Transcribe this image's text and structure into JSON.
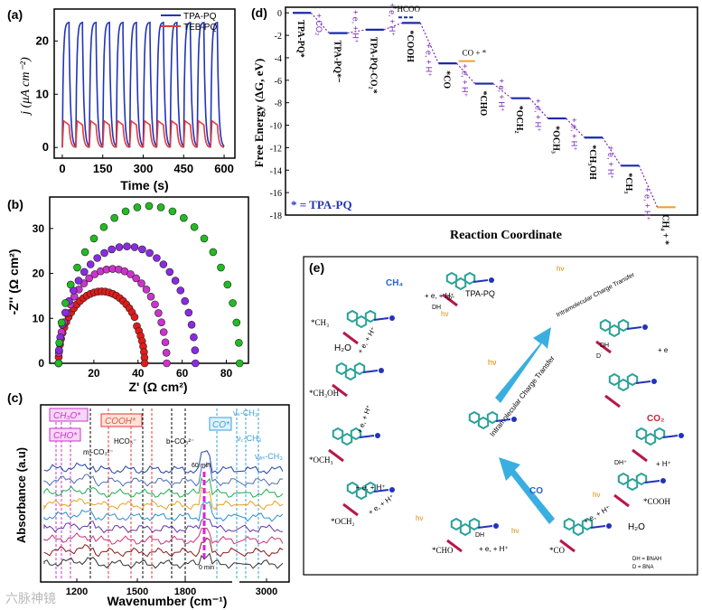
{
  "labels": {
    "a": "(a)",
    "b": "(b)",
    "c": "(c)",
    "d": "(d)",
    "e": "(e)"
  },
  "watermark": "六脉神镜",
  "chart_data": [
    {
      "id": "a",
      "type": "line",
      "xlabel": "Time (s)",
      "ylabel": "j (μA cm⁻²)",
      "xlim": [
        -30,
        640
      ],
      "ylim": [
        -2,
        26
      ],
      "xticks": [
        0,
        150,
        300,
        450,
        600
      ],
      "yticks": [
        0,
        10,
        20
      ],
      "legend_placement": "top-right",
      "cycles": 12,
      "period_s": 50,
      "series": [
        {
          "name": "TPA-PQ",
          "color": "#2233bb",
          "on_value": 23.5,
          "off_value": 0
        },
        {
          "name": "TEB-PQ",
          "color": "#e23b3b",
          "on_value": 5.0,
          "off_value": 0
        }
      ]
    },
    {
      "id": "b",
      "type": "scatter",
      "xlabel": "Z' (Ω cm²)",
      "ylabel": "-Z'' (Ω cm²)",
      "xlim": [
        0,
        90
      ],
      "ylim": [
        0,
        37
      ],
      "xticks": [
        20,
        40,
        60,
        80
      ],
      "yticks": [
        0,
        10,
        20,
        30
      ],
      "series": [
        {
          "color": "#e11b1b",
          "x_start": 4,
          "x_end": 43,
          "peak": 16
        },
        {
          "color": "#cc33cc",
          "x_start": 4,
          "x_end": 53,
          "peak": 21
        },
        {
          "color": "#8a2be2",
          "x_start": 4,
          "x_end": 66,
          "peak": 26
        },
        {
          "color": "#22bb22",
          "x_start": 4,
          "x_end": 86,
          "peak": 35
        }
      ]
    },
    {
      "id": "c",
      "type": "line",
      "xlabel": "Wavenumber (cm⁻¹)",
      "ylabel": "Absorbance (a.u)",
      "xticks": [
        1200,
        1500,
        1800,
        3000
      ],
      "ylim": null,
      "series_count": 9,
      "annotations": {
        "ch3o": "CH₃O*",
        "cho": "CHO*",
        "cooh": "COOH*",
        "co": "CO*",
        "v_ch3": "νₛ-CH₃",
        "v_ch3b": "ν꜀-CH₃",
        "vas_ch3": "νₐₛ-CH₃",
        "m_co3": "m−CO₃²⁻",
        "hco3": "HCO₃⁻",
        "b_co3": "b−CO₃²⁻",
        "t60": "60 min",
        "t0": "0 min"
      }
    },
    {
      "id": "d",
      "type": "line",
      "xlabel": "Reaction Coordinate",
      "ylabel": "Free Energy (ΔG, eV)",
      "ylim": [
        -18,
        0.5
      ],
      "yticks": [
        0,
        -2,
        -4,
        -6,
        -8,
        -10,
        -12,
        -14,
        -16,
        -18
      ],
      "legend": "* = TPA-PQ",
      "levels": [
        {
          "label": "TPA-PQ*",
          "y": 0.0
        },
        {
          "label": "TPA-PQ*⁻",
          "y": -1.8
        },
        {
          "label": "TPA-PQ-CO₂*",
          "y": -1.5
        },
        {
          "label": "*COOH",
          "y": -0.9
        },
        {
          "label": "*CO",
          "y": -4.5
        },
        {
          "label": "*CHO",
          "y": -6.3
        },
        {
          "label": "*OCH₂",
          "y": -7.6
        },
        {
          "label": "*OCH₃",
          "y": -9.4
        },
        {
          "label": "*CH₃OH",
          "y": -11.1
        },
        {
          "label": "*CH₃",
          "y": -13.6
        },
        {
          "label": "CH₄ + *",
          "y": -17.3
        }
      ],
      "side_levels": [
        {
          "label": "*HCOO",
          "y": -0.4
        },
        {
          "label": "CO + *",
          "y": -4.3
        }
      ],
      "steps": [
        "+ e",
        "+ CO₂",
        "+ e, + H⁺",
        "+ e, + H⁺",
        "+ e, + H⁺",
        "+ e, + H⁺",
        "+ e, + H⁺",
        "+ e, + H⁺",
        "+ e, + H⁺",
        "+ e, + H⁺",
        "+ e, + H⁺"
      ]
    }
  ],
  "mechanism": {
    "center_top": "TPA-PQ",
    "ch4": "CH₄",
    "co_out": "CO",
    "co2": "CO₂",
    "h2o_left": "H₂O",
    "h2o_right": "H₂O",
    "ict": "Intramolecular Charge Transfer",
    "hv": "hν",
    "dh": "DH",
    "d_plus": "D⁺",
    "d_dot": "D˙",
    "dh_plus": "DH⁺",
    "step": "+ e, + H⁺",
    "plus_e": "+ e",
    "plus_h": "+ H⁺",
    "species": [
      "*CH₃",
      "*CH₃OH",
      "*OCH₃",
      "*OCH₂",
      "*CHO",
      "*CO",
      "*COOH"
    ],
    "legend_dh": "DH = BNAH",
    "legend_d": "D = BNA"
  }
}
